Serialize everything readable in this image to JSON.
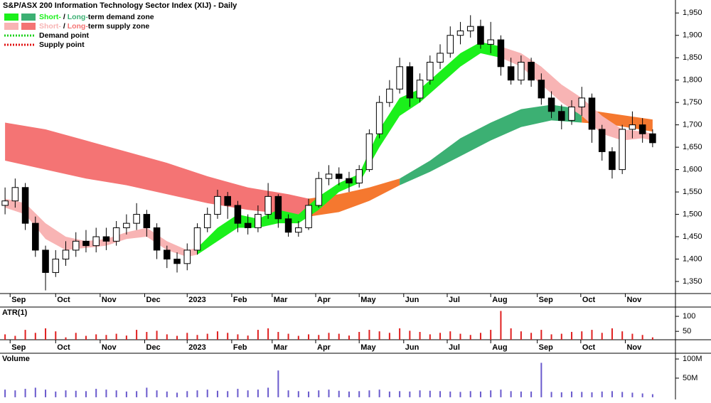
{
  "chart_data": {
    "type": "candlestick",
    "title": "S&P/ASX 200 Information Technology Sector Index (XIJ) - Daily",
    "xlim": [
      -0.5,
      64.5
    ],
    "xticks": [
      {
        "value": 0.5,
        "label": "Sep"
      },
      {
        "value": 5,
        "label": "Oct"
      },
      {
        "value": 9.4,
        "label": "Nov"
      },
      {
        "value": 13.8,
        "label": "Dec"
      },
      {
        "value": 18,
        "label": "2023"
      },
      {
        "value": 22.4,
        "label": "Feb"
      },
      {
        "value": 26.4,
        "label": "Mar"
      },
      {
        "value": 30.7,
        "label": "Apr"
      },
      {
        "value": 35,
        "label": "May"
      },
      {
        "value": 39.4,
        "label": "Jun"
      },
      {
        "value": 43.7,
        "label": "Jul"
      },
      {
        "value": 48,
        "label": "Aug"
      },
      {
        "value": 52.6,
        "label": "Sep"
      },
      {
        "value": 56.9,
        "label": "Oct"
      },
      {
        "value": 61.3,
        "label": "Nov"
      }
    ],
    "ylim": [
      1323,
      1979
    ],
    "yticks": [
      {
        "value": 1350,
        "label": "1,350"
      },
      {
        "value": 1400,
        "label": "1,400"
      },
      {
        "value": 1450,
        "label": "1,450"
      },
      {
        "value": 1500,
        "label": "1,500"
      },
      {
        "value": 1550,
        "label": "1,550"
      },
      {
        "value": 1600,
        "label": "1,600"
      },
      {
        "value": 1650,
        "label": "1,650"
      },
      {
        "value": 1700,
        "label": "1,700"
      },
      {
        "value": 1750,
        "label": "1,750"
      },
      {
        "value": 1800,
        "label": "1,800"
      },
      {
        "value": 1850,
        "label": "1,850"
      },
      {
        "value": 1900,
        "label": "1,900"
      },
      {
        "value": 1950,
        "label": "1,950"
      }
    ],
    "open": [
      1520,
      1530,
      1560,
      1480,
      1420,
      1370,
      1400,
      1420,
      1440,
      1430,
      1450,
      1440,
      1470,
      1480,
      1500,
      1470,
      1420,
      1400,
      1390,
      1420,
      1470,
      1500,
      1540,
      1520,
      1480,
      1470,
      1500,
      1540,
      1490,
      1460,
      1470,
      1520,
      1580,
      1590,
      1580,
      1570,
      1600,
      1680,
      1750,
      1780,
      1830,
      1760,
      1800,
      1840,
      1860,
      1900,
      1910,
      1920,
      1880,
      1890,
      1830,
      1800,
      1840,
      1800,
      1760,
      1730,
      1710,
      1740,
      1760,
      1690,
      1640,
      1600,
      1690,
      1700,
      1680
    ],
    "high": [
      1560,
      1580,
      1570,
      1495,
      1430,
      1420,
      1440,
      1460,
      1465,
      1470,
      1470,
      1485,
      1500,
      1525,
      1510,
      1480,
      1430,
      1415,
      1435,
      1480,
      1515,
      1555,
      1550,
      1530,
      1500,
      1520,
      1570,
      1545,
      1500,
      1485,
      1535,
      1595,
      1610,
      1605,
      1595,
      1610,
      1690,
      1765,
      1800,
      1850,
      1840,
      1815,
      1855,
      1880,
      1920,
      1930,
      1945,
      1935,
      1930,
      1900,
      1850,
      1855,
      1850,
      1815,
      1775,
      1745,
      1755,
      1785,
      1770,
      1700,
      1650,
      1700,
      1730,
      1715,
      1690
    ],
    "low": [
      1500,
      1515,
      1465,
      1405,
      1330,
      1360,
      1385,
      1405,
      1415,
      1415,
      1420,
      1430,
      1455,
      1465,
      1450,
      1400,
      1380,
      1370,
      1375,
      1410,
      1460,
      1490,
      1490,
      1460,
      1455,
      1460,
      1490,
      1470,
      1450,
      1450,
      1465,
      1515,
      1565,
      1565,
      1550,
      1560,
      1595,
      1670,
      1740,
      1770,
      1740,
      1750,
      1790,
      1825,
      1850,
      1880,
      1895,
      1870,
      1860,
      1810,
      1790,
      1790,
      1785,
      1745,
      1715,
      1690,
      1700,
      1720,
      1660,
      1620,
      1580,
      1590,
      1670,
      1660,
      1650
    ],
    "close": [
      1530,
      1560,
      1480,
      1420,
      1370,
      1400,
      1420,
      1440,
      1430,
      1450,
      1440,
      1470,
      1480,
      1500,
      1470,
      1420,
      1400,
      1390,
      1420,
      1470,
      1500,
      1540,
      1520,
      1480,
      1470,
      1500,
      1540,
      1490,
      1460,
      1470,
      1520,
      1580,
      1590,
      1580,
      1570,
      1600,
      1680,
      1750,
      1780,
      1830,
      1760,
      1800,
      1840,
      1860,
      1900,
      1910,
      1920,
      1880,
      1890,
      1830,
      1800,
      1840,
      1800,
      1760,
      1730,
      1710,
      1740,
      1760,
      1690,
      1640,
      1600,
      1690,
      1700,
      1680,
      1660
    ],
    "zones": [
      {
        "color": "#f47474",
        "x": [
          0,
          4,
          8,
          12,
          16,
          20,
          24,
          28,
          30
        ],
        "upper": [
          1705,
          1690,
          1665,
          1640,
          1615,
          1585,
          1560,
          1545,
          1535
        ],
        "lower": [
          1620,
          1600,
          1580,
          1565,
          1545,
          1525,
          1510,
          1500,
          1495
        ]
      },
      {
        "color": "#f5782f",
        "x": [
          30,
          33,
          36,
          39
        ],
        "upper": [
          1535,
          1545,
          1560,
          1580
        ],
        "lower": [
          1495,
          1505,
          1530,
          1565
        ]
      },
      {
        "color": "#3cb073",
        "x": [
          39,
          42,
          45,
          48,
          51,
          54,
          57
        ],
        "upper": [
          1580,
          1620,
          1670,
          1705,
          1735,
          1745,
          1735
        ],
        "lower": [
          1565,
          1595,
          1630,
          1665,
          1695,
          1710,
          1705
        ]
      },
      {
        "color": "#f5782f",
        "x": [
          57,
          60,
          64
        ],
        "upper": [
          1735,
          1725,
          1712
        ],
        "lower": [
          1705,
          1700,
          1685
        ]
      },
      {
        "color": "#f8b4b4",
        "x": [
          0,
          2,
          4,
          6,
          8,
          10,
          12,
          14,
          16,
          18,
          19
        ],
        "upper": [
          1535,
          1525,
          1480,
          1450,
          1440,
          1445,
          1460,
          1470,
          1440,
          1420,
          1425
        ],
        "lower": [
          1515,
          1500,
          1445,
          1420,
          1425,
          1430,
          1445,
          1450,
          1420,
          1405,
          1410
        ]
      },
      {
        "color": "#1bf01b",
        "x": [
          19,
          21,
          23,
          25,
          27,
          29,
          31,
          33,
          35,
          37,
          39,
          41,
          43,
          45,
          47,
          49
        ],
        "upper": [
          1425,
          1470,
          1500,
          1490,
          1510,
          1500,
          1540,
          1570,
          1590,
          1690,
          1760,
          1780,
          1820,
          1860,
          1885,
          1875
        ],
        "lower": [
          1410,
          1440,
          1470,
          1470,
          1480,
          1480,
          1510,
          1550,
          1570,
          1650,
          1720,
          1750,
          1790,
          1830,
          1860,
          1850
        ]
      },
      {
        "color": "#f8b4b4",
        "x": [
          49,
          51,
          53,
          55,
          57,
          59,
          61,
          63,
          64
        ],
        "upper": [
          1875,
          1860,
          1830,
          1790,
          1760,
          1720,
          1690,
          1685,
          1680
        ],
        "lower": [
          1850,
          1830,
          1790,
          1750,
          1720,
          1680,
          1665,
          1670,
          1665
        ]
      }
    ],
    "legend": [
      {
        "parts": [
          "Short-",
          " / ",
          "Long-",
          "term demand zone"
        ],
        "colors": [
          "#1bf01b",
          "#3cb073"
        ]
      },
      {
        "parts": [
          "Short-",
          " / ",
          "Long-",
          "term supply zone"
        ],
        "colors": [
          "#f8b4b4",
          "#f47474"
        ]
      },
      {
        "text": "Demand point",
        "color": "#1bd01b"
      },
      {
        "text": "Supply point",
        "color": "#e01010"
      }
    ],
    "atr": {
      "label": "ATR(1)",
      "color": "#e02020",
      "ylim": [
        22,
        131
      ],
      "yticks": [
        50,
        100
      ],
      "values": [
        40,
        35,
        55,
        45,
        60,
        50,
        30,
        45,
        35,
        40,
        38,
        42,
        36,
        55,
        48,
        52,
        40,
        35,
        45,
        38,
        42,
        50,
        45,
        40,
        36,
        55,
        60,
        48,
        42,
        35,
        40,
        38,
        45,
        42,
        36,
        48,
        55,
        50,
        45,
        60,
        52,
        48,
        40,
        45,
        50,
        42,
        38,
        45,
        55,
        118,
        60,
        50,
        45,
        55,
        40,
        42,
        48,
        50,
        55,
        45,
        60,
        50,
        42,
        38,
        30
      ]
    },
    "volume": {
      "label": "Volume",
      "color": "#6a5acd",
      "ylim": [
        -2,
        115
      ],
      "yticks": [
        {
          "value": 50,
          "label": "50M"
        },
        {
          "value": 100,
          "label": "100M"
        }
      ],
      "values": [
        20,
        18,
        22,
        25,
        20,
        15,
        18,
        17,
        16,
        22,
        20,
        18,
        15,
        16,
        25,
        18,
        15,
        12,
        16,
        18,
        20,
        17,
        16,
        22,
        18,
        20,
        25,
        70,
        18,
        16,
        15,
        18,
        20,
        17,
        15,
        16,
        18,
        20,
        15,
        16,
        15,
        18,
        17,
        16,
        15,
        14,
        16,
        15,
        18,
        20,
        16,
        15,
        15,
        90,
        14,
        13,
        15,
        14,
        13,
        15,
        16,
        14,
        12,
        10,
        8
      ]
    }
  }
}
